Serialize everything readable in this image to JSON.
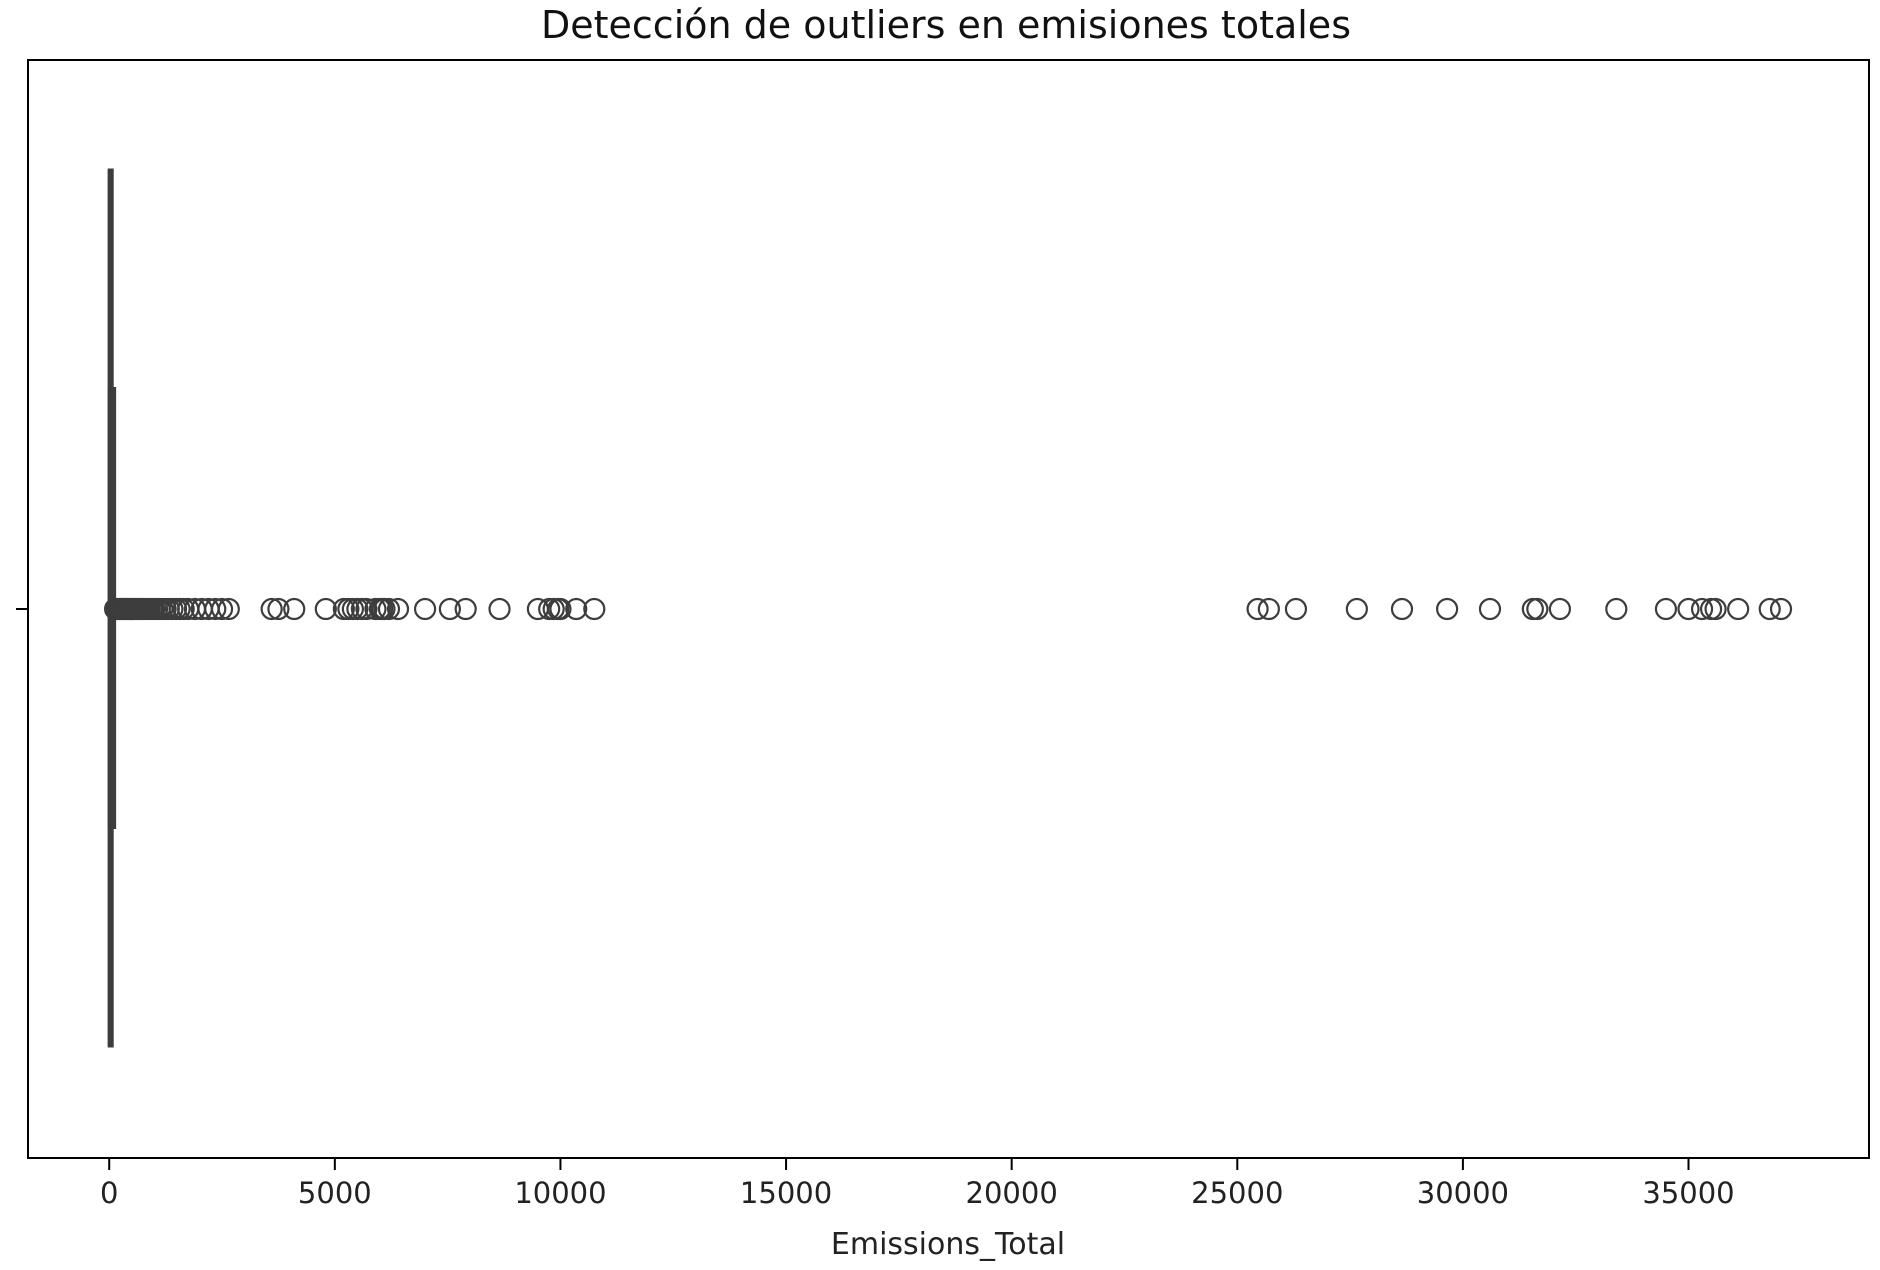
{
  "chart_data": {
    "type": "boxplot",
    "orientation": "horizontal",
    "title": "Detección de outliers en emisiones totales",
    "xlabel": "Emissions_Total",
    "ylabel": "",
    "xlim": [
      -1800,
      39000
    ],
    "xticks": [
      0,
      5000,
      10000,
      15000,
      20000,
      25000,
      30000,
      35000
    ],
    "xtick_labels": [
      "0",
      "5000",
      "10000",
      "15000",
      "20000",
      "25000",
      "30000",
      "35000"
    ],
    "grid": false,
    "colors": {
      "box_edge": "#3d3d3d",
      "axes": "#000000",
      "outlier_edge": "#3d3d3d"
    },
    "box": {
      "whisker_low": 0,
      "q1": 0,
      "median": 0,
      "q3": 50,
      "whisker_high": 120
    },
    "outliers": [
      130,
      160,
      190,
      220,
      250,
      280,
      310,
      340,
      370,
      400,
      430,
      460,
      490,
      520,
      560,
      600,
      640,
      680,
      720,
      760,
      800,
      850,
      900,
      950,
      1000,
      1060,
      1120,
      1180,
      1250,
      1320,
      1400,
      1480,
      1560,
      1650,
      1750,
      1900,
      2050,
      2200,
      2350,
      2500,
      2650,
      3600,
      3750,
      4100,
      4800,
      5200,
      5300,
      5400,
      5500,
      5600,
      5700,
      5900,
      6000,
      6050,
      6100,
      6200,
      6400,
      7000,
      7550,
      7900,
      8650,
      9500,
      9750,
      9850,
      9950,
      10000,
      10350,
      10750,
      25450,
      25700,
      26300,
      27650,
      28650,
      29650,
      30600,
      31550,
      31650,
      32150,
      33400,
      34500,
      35000,
      35300,
      35500,
      35600,
      36100,
      36800,
      37050
    ]
  }
}
